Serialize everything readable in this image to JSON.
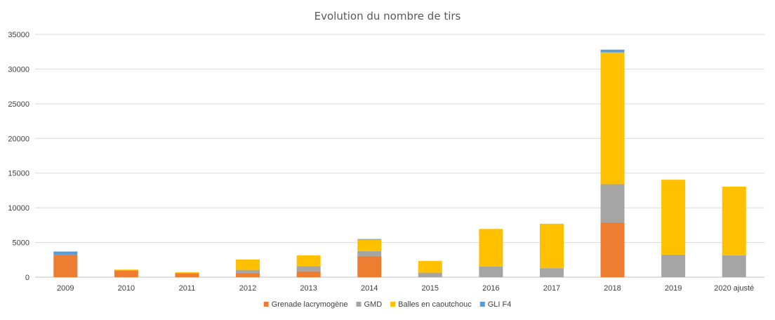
{
  "chart_data": {
    "type": "bar",
    "stacked": true,
    "title": "Evolution du nombre de tirs",
    "xlabel": "",
    "ylabel": "",
    "ylim": [
      0,
      35000
    ],
    "y_ticks": [
      0,
      5000,
      10000,
      15000,
      20000,
      25000,
      30000,
      35000
    ],
    "grid": true,
    "legend_position": "bottom",
    "categories": [
      "2009",
      "2010",
      "2011",
      "2012",
      "2013",
      "2014",
      "2015",
      "2016",
      "2017",
      "2018",
      "2019",
      "2020 ajusté"
    ],
    "series": [
      {
        "name": "Grenade lacrymogène",
        "color": "#ed7d31",
        "values": [
          3250,
          950,
          550,
          600,
          850,
          3050,
          0,
          0,
          0,
          7900,
          0,
          0
        ]
      },
      {
        "name": "GMD",
        "color": "#a5a5a5",
        "values": [
          0,
          50,
          50,
          450,
          750,
          700,
          650,
          1550,
          1300,
          5500,
          3250,
          3150
        ]
      },
      {
        "name": "Balles en caoutchouc",
        "color": "#ffc000",
        "values": [
          0,
          100,
          100,
          1500,
          1550,
          1650,
          1700,
          5400,
          6400,
          19000,
          10800,
          9900
        ]
      },
      {
        "name": "GLI F4",
        "color": "#5b9bd5",
        "values": [
          450,
          0,
          0,
          0,
          0,
          100,
          0,
          0,
          0,
          400,
          0,
          0
        ]
      }
    ]
  }
}
